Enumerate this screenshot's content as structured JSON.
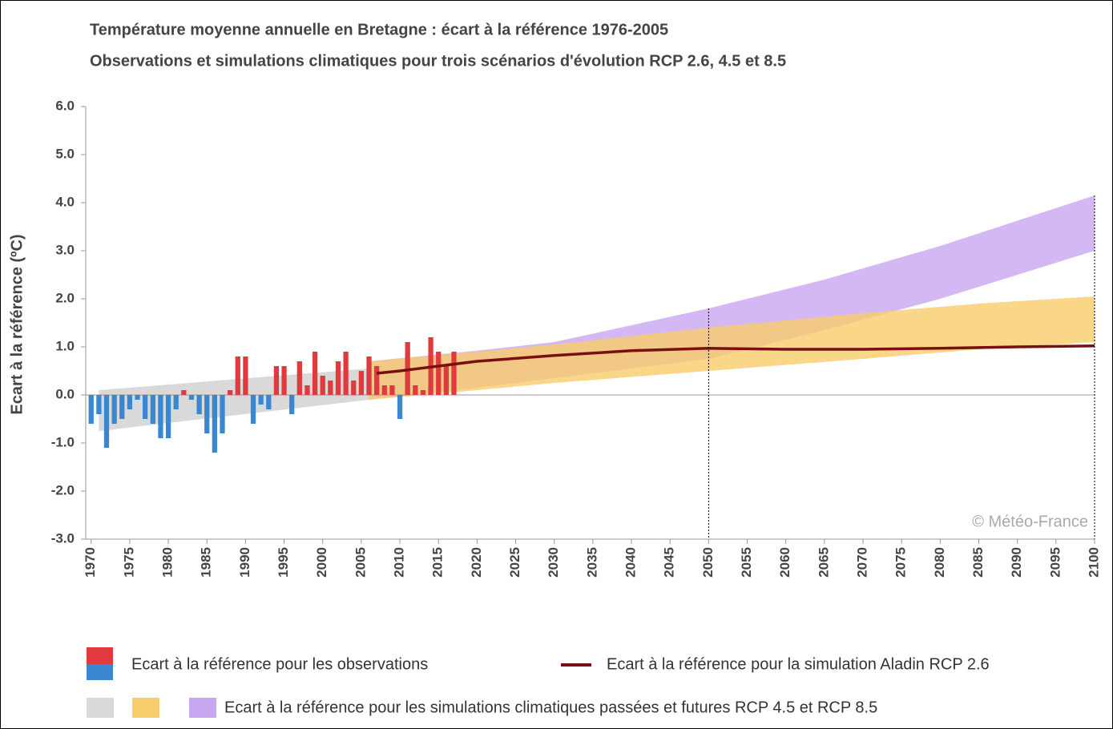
{
  "chart_data": {
    "type": "combo",
    "title": "Température moyenne annuelle en Bretagne : écart à la référence 1976-2005",
    "subtitle": "Observations et simulations climatiques pour trois scénarios d'évolution RCP 2.6, 4.5 et 8.5",
    "y_label": "Ecart à la référence (ºC)",
    "watermark": "© Météo-France",
    "xlim": [
      1969.3,
      2100
    ],
    "xticks": [
      1970,
      1975,
      1980,
      1985,
      1990,
      1995,
      2000,
      2005,
      2010,
      2015,
      2020,
      2025,
      2030,
      2035,
      2040,
      2045,
      2050,
      2055,
      2060,
      2065,
      2070,
      2075,
      2080,
      2085,
      2090,
      2095,
      2100
    ],
    "ylim": [
      -3,
      6
    ],
    "yticks": [
      {
        "value": 6,
        "label": "6.0"
      },
      {
        "value": 5,
        "label": "5.0"
      },
      {
        "value": 4,
        "label": "4.0"
      },
      {
        "value": 3,
        "label": "3.0"
      },
      {
        "value": 2,
        "label": "2.0"
      },
      {
        "value": 1,
        "label": "1.0"
      },
      {
        "value": 0,
        "label": "0.0"
      },
      {
        "value": -1,
        "label": "-1.0"
      },
      {
        "value": -2,
        "label": "-2.0"
      },
      {
        "value": -3,
        "label": "-3.0"
      }
    ],
    "vertical_lines": [
      2050,
      2100
    ],
    "observations": {
      "name": "Ecart à la référence pour les observations",
      "positive_color": "#e0393e",
      "negative_color": "#3a87d0",
      "x": [
        1970,
        1971,
        1972,
        1973,
        1974,
        1975,
        1976,
        1977,
        1978,
        1979,
        1980,
        1981,
        1982,
        1983,
        1984,
        1985,
        1986,
        1987,
        1988,
        1989,
        1990,
        1991,
        1992,
        1993,
        1994,
        1995,
        1996,
        1997,
        1998,
        1999,
        2000,
        2001,
        2002,
        2003,
        2004,
        2005,
        2006,
        2007,
        2008,
        2009,
        2010,
        2011,
        2012,
        2013,
        2014,
        2015,
        2016,
        2017
      ],
      "values": [
        -0.6,
        -0.4,
        -1.1,
        -0.6,
        -0.5,
        -0.3,
        -0.1,
        -0.5,
        -0.6,
        -0.9,
        -0.9,
        -0.3,
        0.1,
        -0.1,
        -0.4,
        -0.8,
        -1.2,
        -0.8,
        0.1,
        0.8,
        0.8,
        -0.6,
        -0.2,
        -0.3,
        0.6,
        0.6,
        -0.4,
        0.7,
        0.2,
        0.9,
        0.4,
        0.3,
        0.7,
        0.9,
        0.3,
        0.5,
        0.8,
        0.6,
        0.2,
        0.2,
        -0.5,
        1.1,
        0.2,
        0.1,
        1.2,
        0.9,
        0.6,
        0.9
      ]
    },
    "bands": {
      "name": "Ecart à la référence pour les simulations climatiques passées et futures RCP 4.5 et RCP 8.5",
      "items": [
        {
          "color": "#d9d9d9",
          "x": [
            1971,
            2006
          ],
          "lower": [
            -0.75,
            -0.1
          ],
          "upper": [
            0.1,
            0.55
          ]
        },
        {
          "color": "#c9a6f0",
          "x": [
            2006,
            2020,
            2030,
            2040,
            2050,
            2065,
            2080,
            2100
          ],
          "lower": [
            -0.1,
            0.15,
            0.35,
            0.55,
            0.75,
            1.35,
            2.0,
            3.0
          ],
          "upper": [
            0.7,
            0.92,
            1.1,
            1.45,
            1.8,
            2.4,
            3.1,
            4.15
          ]
        },
        {
          "color": "#f7cc6a",
          "x": [
            2006,
            2020,
            2030,
            2050,
            2070,
            2085,
            2100
          ],
          "lower": [
            -0.1,
            0.1,
            0.25,
            0.5,
            0.75,
            0.95,
            1.1
          ],
          "upper": [
            0.7,
            0.9,
            1.05,
            1.4,
            1.7,
            1.9,
            2.05
          ]
        }
      ]
    },
    "simulation": {
      "name": "Ecart à la référence pour la simulation Aladin RCP 2.6",
      "color": "#7a0f12",
      "x": [
        2007,
        2010,
        2015,
        2020,
        2030,
        2040,
        2050,
        2060,
        2070,
        2080,
        2090,
        2100
      ],
      "values": [
        0.45,
        0.5,
        0.6,
        0.7,
        0.82,
        0.92,
        0.97,
        0.95,
        0.95,
        0.97,
        1.0,
        1.02
      ]
    }
  }
}
